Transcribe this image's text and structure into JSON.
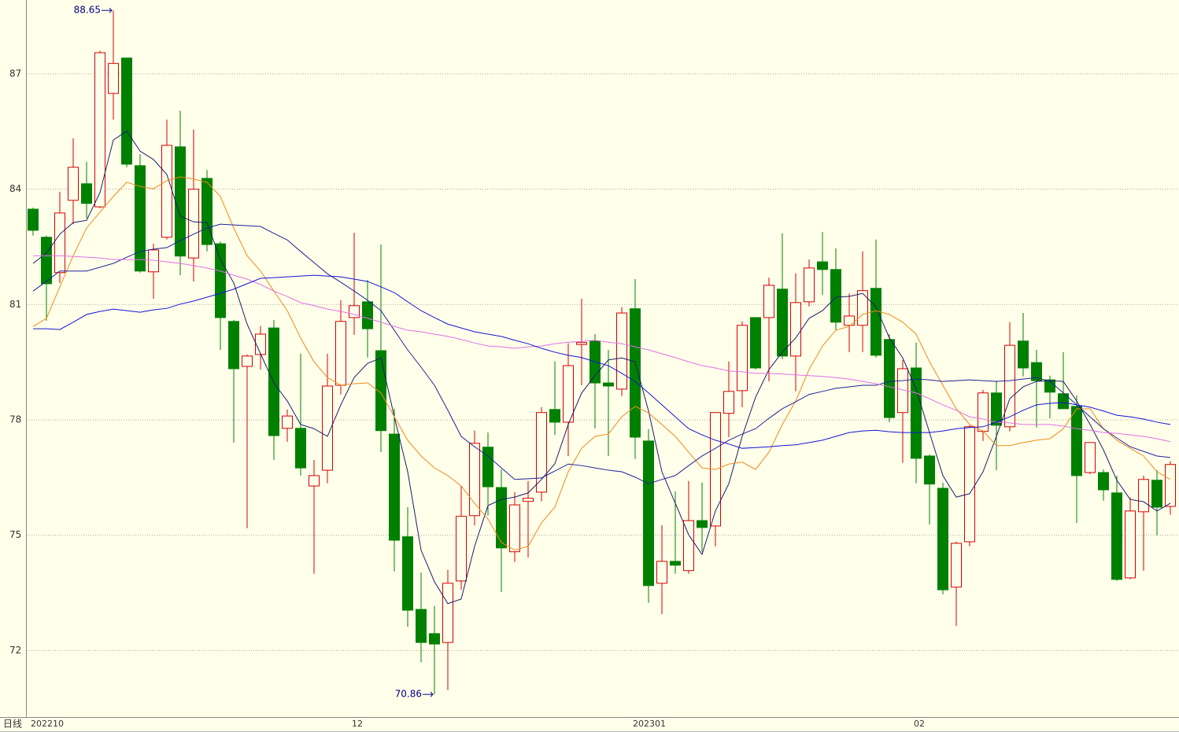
{
  "chart_data": {
    "type": "candlestick",
    "period_label": "日线",
    "categories": [
      "202210",
      null,
      null,
      null,
      null,
      null,
      null,
      null,
      null,
      null,
      null,
      null,
      null,
      null,
      null,
      null,
      null,
      null,
      null,
      null,
      null,
      null,
      null,
      null,
      "12",
      null,
      null,
      null,
      null,
      null,
      null,
      null,
      null,
      null,
      null,
      null,
      null,
      null,
      null,
      null,
      null,
      null,
      null,
      null,
      null,
      "202301",
      null,
      null,
      null,
      null,
      null,
      null,
      null,
      null,
      null,
      null,
      null,
      null,
      null,
      null,
      null,
      null,
      null,
      null,
      null,
      null,
      "02",
      null,
      null,
      null,
      null,
      null,
      null,
      null,
      null,
      null,
      null,
      null,
      null,
      null,
      null,
      null,
      null,
      null,
      null,
      null
    ],
    "open": [
      83.48,
      82.75,
      81.83,
      83.71,
      84.14,
      83.54,
      86.49,
      87.41,
      84.61,
      81.85,
      82.75,
      85.1,
      82.21,
      84.28,
      82.58,
      80.56,
      79.39,
      79.7,
      80.39,
      77.78,
      77.78,
      76.28,
      76.69,
      78.9,
      80.66,
      81.07,
      79.8,
      77.63,
      74.96,
      73.07,
      72.44,
      72.21,
      73.81,
      75.51,
      77.29,
      76.24,
      74.57,
      75.88,
      76.12,
      78.27,
      77.94,
      79.96,
      80.05,
      78.96,
      78.8,
      80.89,
      77.45,
      73.75,
      74.32,
      74.08,
      75.38,
      75.24,
      78.17,
      78.76,
      80.66,
      80.66,
      81.4,
      79.66,
      81.07,
      82.11,
      81.91,
      80.46,
      80.46,
      81.42,
      80.09,
      78.19,
      79.35,
      77.06,
      76.22,
      73.65,
      74.83,
      77.7,
      78.7,
      77.82,
      80.05,
      79.49,
      79.04,
      78.68,
      78.35,
      76.63,
      76.63,
      76.1,
      73.89,
      75.61,
      76.43,
      75.75
    ],
    "high": [
      83.52,
      82.79,
      83.93,
      85.32,
      84.71,
      87.6,
      88.65,
      87.41,
      84.91,
      82.58,
      85.81,
      86.04,
      85.55,
      84.5,
      82.64,
      80.6,
      79.7,
      80.44,
      80.6,
      78.27,
      79.72,
      76.96,
      79.72,
      81.11,
      82.87,
      81.64,
      82.56,
      78.29,
      75.73,
      74.03,
      73.16,
      74.1,
      76.28,
      77.72,
      77.67,
      76.71,
      76.12,
      76.41,
      78.33,
      79.52,
      79.99,
      81.15,
      80.23,
      79.82,
      80.93,
      81.66,
      77.76,
      75.26,
      76.14,
      76.41,
      76.37,
      78.19,
      79.52,
      80.56,
      80.66,
      81.7,
      82.85,
      81.81,
      82.17,
      82.89,
      82.46,
      81.29,
      82.38,
      82.69,
      80.23,
      79.56,
      80.01,
      77.1,
      76.37,
      74.83,
      77.86,
      78.78,
      79.02,
      80.54,
      80.78,
      79.82,
      79.15,
      79.76,
      78.64,
      77.41,
      76.71,
      76.55,
      75.98,
      76.55,
      76.69,
      76.92
    ],
    "low": [
      82.79,
      80.58,
      81.56,
      83.09,
      83.24,
      83.5,
      85.81,
      84.57,
      81.83,
      81.15,
      82.69,
      81.76,
      81.6,
      82.38,
      79.82,
      77.41,
      75.18,
      79.31,
      76.96,
      77.43,
      76.55,
      74.0,
      76.35,
      78.66,
      80.21,
      79.62,
      77.16,
      74.06,
      72.62,
      71.7,
      70.86,
      70.97,
      73.58,
      75.26,
      75.51,
      73.52,
      74.3,
      74.42,
      75.88,
      77.61,
      77.06,
      78.9,
      77.78,
      77.06,
      78.62,
      76.98,
      73.24,
      72.95,
      74.0,
      74.0,
      74.57,
      74.71,
      77.55,
      78.33,
      79.31,
      79.0,
      79.58,
      78.74,
      80.95,
      81.25,
      80.33,
      79.76,
      79.76,
      79.62,
      77.94,
      76.88,
      76.35,
      75.28,
      73.46,
      72.64,
      74.71,
      77.45,
      76.69,
      77.7,
      79.13,
      77.8,
      78.04,
      78.29,
      75.32,
      76.59,
      75.9,
      73.81,
      73.85,
      74.08,
      75.0,
      75.53
    ],
    "close": [
      82.93,
      81.54,
      83.38,
      84.57,
      83.63,
      87.55,
      87.27,
      84.65,
      81.87,
      82.42,
      85.14,
      82.26,
      84.0,
      82.56,
      80.66,
      79.33,
      79.66,
      80.23,
      77.59,
      78.1,
      76.75,
      76.55,
      78.88,
      80.56,
      80.97,
      80.37,
      77.72,
      74.87,
      73.05,
      72.21,
      72.17,
      73.75,
      75.49,
      77.39,
      76.26,
      74.67,
      75.79,
      75.96,
      78.19,
      77.94,
      79.41,
      80.01,
      78.96,
      78.88,
      80.78,
      77.55,
      73.69,
      74.32,
      74.22,
      75.38,
      75.2,
      78.19,
      78.74,
      80.46,
      79.35,
      81.5,
      79.66,
      81.05,
      81.95,
      81.91,
      80.54,
      80.7,
      81.36,
      79.68,
      78.06,
      79.33,
      77.0,
      76.33,
      73.58,
      74.79,
      77.82,
      78.7,
      77.86,
      79.94,
      79.35,
      79.02,
      78.72,
      78.29,
      76.55,
      77.41,
      76.18,
      73.85,
      75.63,
      76.45,
      75.73,
      76.84
    ],
    "up_color": "#d40000",
    "down_color": "#008000",
    "lines": [
      {
        "color": "#1c1c6c",
        "values": [
          82.07,
          82.34,
          82.83,
          83.13,
          83.19,
          83.91,
          85.28,
          85.51,
          84.99,
          84.77,
          84.38,
          83.3,
          83.15,
          83.13,
          82.17,
          81.56,
          80.49,
          79.72,
          78.96,
          78.49,
          77.88,
          77.77,
          77.57,
          78.39,
          79.1,
          79.47,
          79.61,
          78.08,
          76.65,
          74.61,
          73.79,
          73.22,
          73.34,
          74.71,
          75.77,
          75.93,
          75.99,
          76.1,
          76.45,
          76.86,
          77.88,
          78.7,
          79.15,
          79.56,
          79.61,
          79.51,
          78.23,
          76.65,
          75.83,
          75.01,
          74.5,
          75.63,
          76.34,
          77.57,
          78.59,
          79.31,
          79.76,
          80.13,
          80.64,
          80.84,
          81.19,
          81.21,
          81.29,
          80.94,
          80.13,
          79.61,
          78.8,
          77.67,
          76.55,
          75.99,
          76.08,
          76.65,
          77.57,
          78.55,
          78.86,
          79.0,
          79.02,
          79.0,
          78.49,
          77.88,
          77.22,
          76.43,
          75.93,
          75.87,
          75.63,
          75.83
        ]
      },
      {
        "color": "#f08a1c",
        "values": [
          80.43,
          80.64,
          81.46,
          82.27,
          82.99,
          83.4,
          83.81,
          84.18,
          84.07,
          84.01,
          84.22,
          84.32,
          84.26,
          84.18,
          83.81,
          82.99,
          82.27,
          81.87,
          81.35,
          80.84,
          80.13,
          79.51,
          79.1,
          78.9,
          78.94,
          78.96,
          78.7,
          78.08,
          77.47,
          77.06,
          76.75,
          76.55,
          76.28,
          75.83,
          75.42,
          74.81,
          74.61,
          74.71,
          75.32,
          75.73,
          76.65,
          77.26,
          77.57,
          77.63,
          78.08,
          78.35,
          78.18,
          77.88,
          77.57,
          77.16,
          76.75,
          76.71,
          76.85,
          76.9,
          76.71,
          77.16,
          77.88,
          78.49,
          79.31,
          79.92,
          80.33,
          80.43,
          80.74,
          80.84,
          80.74,
          80.54,
          80.23,
          79.51,
          78.9,
          78.29,
          77.88,
          77.71,
          77.33,
          77.33,
          77.41,
          77.47,
          77.51,
          77.77,
          78.29,
          78.29,
          77.77,
          77.47,
          77.26,
          77.06,
          76.65,
          76.45
        ]
      },
      {
        "color": "#22229a",
        "values": [
          81.35,
          81.6,
          81.87,
          81.87,
          81.87,
          81.97,
          82.07,
          82.23,
          82.38,
          82.44,
          82.48,
          82.66,
          82.83,
          82.99,
          83.09,
          83.07,
          83.05,
          83.03,
          82.85,
          82.68,
          82.38,
          82.09,
          81.8,
          81.58,
          81.35,
          81.11,
          80.84,
          80.33,
          79.82,
          79.37,
          78.9,
          78.25,
          77.57,
          77.3,
          77.06,
          76.75,
          76.45,
          76.47,
          76.49,
          76.67,
          76.85,
          76.81,
          76.75,
          76.69,
          76.65,
          76.51,
          76.34,
          76.45,
          76.55,
          76.81,
          77.06,
          77.26,
          77.47,
          77.63,
          77.77,
          78.04,
          78.29,
          78.47,
          78.66,
          78.74,
          78.82,
          78.86,
          78.9,
          78.9,
          79.0,
          79.02,
          79.06,
          79.04,
          79.0,
          79.02,
          79.04,
          79.02,
          79.0,
          79.02,
          79.06,
          79.1,
          79.0,
          78.7,
          78.39,
          78.08,
          77.77,
          77.53,
          77.3,
          77.18,
          77.06,
          77.02
        ]
      },
      {
        "color": "#e070e8",
        "values": [
          82.27,
          82.27,
          82.27,
          82.25,
          82.23,
          82.21,
          82.17,
          82.17,
          82.17,
          82.15,
          82.11,
          82.07,
          82.01,
          81.95,
          81.87,
          81.76,
          81.66,
          81.52,
          81.35,
          81.21,
          81.05,
          80.97,
          80.88,
          80.82,
          80.74,
          80.64,
          80.54,
          80.43,
          80.33,
          80.29,
          80.23,
          80.17,
          80.09,
          80.0,
          79.92,
          79.9,
          79.86,
          79.9,
          79.92,
          79.98,
          80.02,
          80.04,
          80.07,
          80.02,
          79.98,
          79.9,
          79.82,
          79.72,
          79.62,
          79.51,
          79.41,
          79.35,
          79.27,
          79.25,
          79.21,
          79.21,
          79.19,
          79.17,
          79.15,
          79.13,
          79.1,
          79.06,
          79.0,
          78.94,
          78.86,
          78.78,
          78.7,
          78.55,
          78.39,
          78.25,
          78.08,
          78.02,
          77.94,
          77.92,
          77.88,
          77.88,
          77.88,
          77.84,
          77.77,
          77.73,
          77.67,
          77.65,
          77.61,
          77.57,
          77.51,
          77.43
        ]
      },
      {
        "color": "#1414d4",
        "values": [
          80.37,
          80.37,
          80.35,
          80.54,
          80.74,
          80.82,
          80.88,
          80.84,
          80.8,
          80.86,
          80.9,
          81.01,
          81.09,
          81.19,
          81.29,
          81.4,
          81.54,
          81.68,
          81.7,
          81.72,
          81.74,
          81.76,
          81.74,
          81.72,
          81.66,
          81.6,
          81.46,
          81.31,
          81.07,
          80.84,
          80.66,
          80.49,
          80.39,
          80.29,
          80.23,
          80.17,
          80.07,
          79.98,
          79.86,
          79.76,
          79.68,
          79.62,
          79.51,
          79.41,
          79.21,
          79.0,
          78.7,
          78.39,
          78.08,
          77.77,
          77.61,
          77.47,
          77.37,
          77.26,
          77.28,
          77.3,
          77.33,
          77.35,
          77.41,
          77.47,
          77.57,
          77.67,
          77.71,
          77.73,
          77.69,
          77.67,
          77.67,
          77.67,
          77.71,
          77.77,
          77.8,
          77.82,
          77.94,
          78.08,
          78.25,
          78.39,
          78.43,
          78.45,
          78.39,
          78.33,
          78.23,
          78.12,
          78.08,
          78.02,
          77.94,
          77.88
        ]
      }
    ],
    "ylim": [
      70.27,
      88.92
    ],
    "yticks": [
      72,
      75,
      78,
      81,
      84,
      87
    ],
    "grid": true
  }
}
